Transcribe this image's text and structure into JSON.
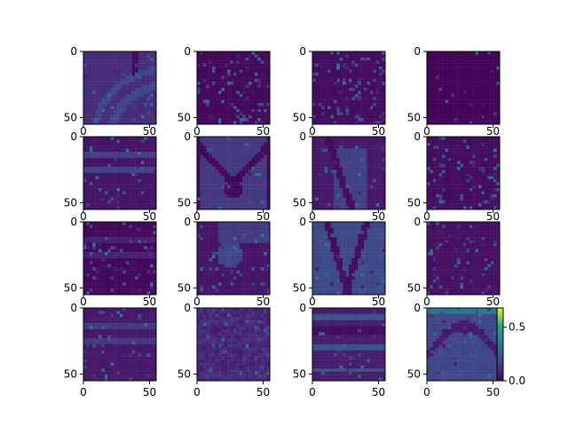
{
  "chart_data": {
    "type": "heatmap",
    "layout": {
      "rows": 4,
      "cols": 4
    },
    "colormap": "viridis",
    "x_ticks": [
      0,
      50
    ],
    "y_ticks": [
      0,
      50
    ],
    "xlim": [
      0,
      55
    ],
    "ylim": [
      55,
      0
    ],
    "colorbar": {
      "range": [
        0.0,
        0.68
      ],
      "ticks": [
        0.0,
        0.5
      ],
      "tick_labels": [
        "0.0",
        "0.5"
      ],
      "placement": "right of bottom-right panel"
    },
    "panels": [
      {
        "index": 1,
        "pattern": "arcs",
        "base": 0.11,
        "feature": 0.18,
        "speckle": 0.05
      },
      {
        "index": 2,
        "pattern": "sparse",
        "base": 0.02,
        "feature": 0.08,
        "speckle": 0.12
      },
      {
        "index": 3,
        "pattern": "sparse",
        "base": 0.03,
        "feature": 0.1,
        "speckle": 0.14
      },
      {
        "index": 4,
        "pattern": "flat",
        "base": 0.01,
        "feature": 0.05,
        "speckle": 0.03
      },
      {
        "index": 5,
        "pattern": "bands",
        "base": 0.05,
        "feature": 0.16,
        "speckle": 0.08
      },
      {
        "index": 6,
        "pattern": "v-shape",
        "base": 0.14,
        "feature": 0.02,
        "speckle": 0.04
      },
      {
        "index": 7,
        "pattern": "diagonal",
        "base": 0.06,
        "feature": 0.2,
        "speckle": 0.06
      },
      {
        "index": 8,
        "pattern": "sparse",
        "base": 0.03,
        "feature": 0.12,
        "speckle": 0.1
      },
      {
        "index": 9,
        "pattern": "bands",
        "base": 0.02,
        "feature": 0.08,
        "speckle": 0.08
      },
      {
        "index": 10,
        "pattern": "blob",
        "base": 0.05,
        "feature": 0.18,
        "speckle": 0.07
      },
      {
        "index": 11,
        "pattern": "stripes",
        "base": 0.19,
        "feature": 0.03,
        "speckle": 0.04
      },
      {
        "index": 12,
        "pattern": "sparse",
        "base": 0.04,
        "feature": 0.12,
        "speckle": 0.1
      },
      {
        "index": 13,
        "pattern": "bands",
        "base": 0.06,
        "feature": 0.14,
        "speckle": 0.07
      },
      {
        "index": 14,
        "pattern": "texture",
        "base": 0.1,
        "feature": 0.16,
        "speckle": 0.08
      },
      {
        "index": 15,
        "pattern": "horizontal",
        "base": 0.07,
        "feature": 0.22,
        "speckle": 0.05
      },
      {
        "index": 16,
        "pattern": "u-shape",
        "base": 0.18,
        "feature": 0.06,
        "speckle": 0.1
      }
    ]
  }
}
